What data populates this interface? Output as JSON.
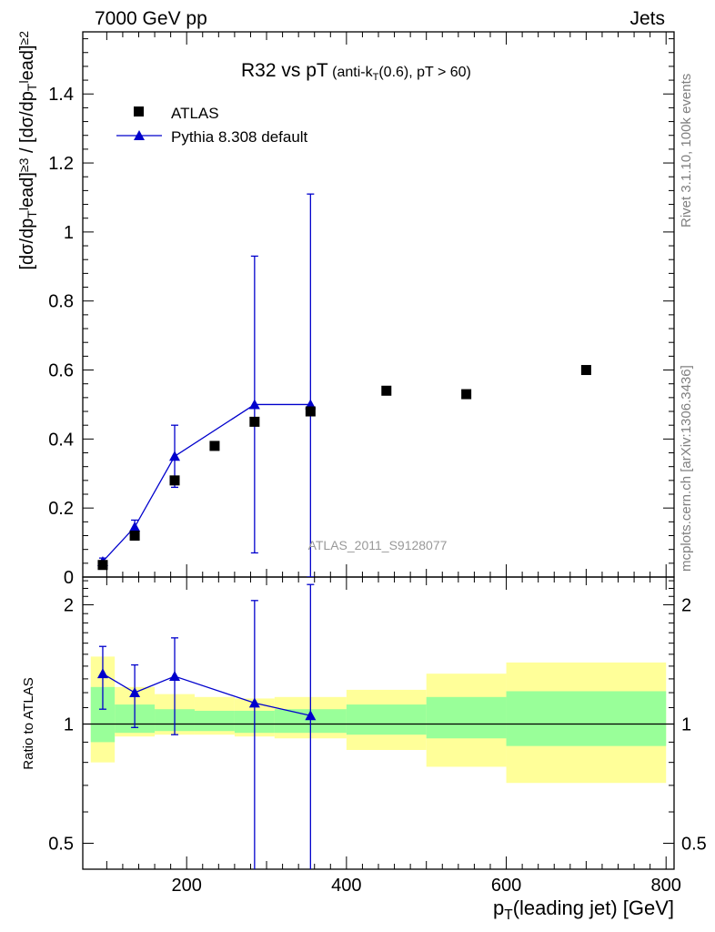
{
  "header": {
    "left": "7000 GeV pp",
    "right": "Jets"
  },
  "side_labels": {
    "top": "Rivet 3.1.10,  100k events",
    "bottom": "mcplots.cern.ch [arXiv:1306.3436]"
  },
  "colors": {
    "mc": "#0000cc",
    "data": "#000000",
    "band_inner": "#99ff99",
    "band_outer": "#ffff99",
    "side_text": "#808080",
    "watermark": "#999999"
  },
  "chart_data": [
    {
      "type": "scatter",
      "panel": "main",
      "title": "R32 vs pT",
      "title_detail": {
        "pre": "(anti-k",
        "sub": "T",
        "post": "(0.6), pT > 60)"
      },
      "ylabel": "[dσ/dp_T^lead]^{≥3} / [dσ/dp_T^lead]^{≥2}",
      "ylabel_parts": [
        {
          "t": "[dσ/dp"
        },
        {
          "t": "T",
          "s": "sub"
        },
        {
          "t": "l",
          "s": "sup"
        },
        {
          "t": "ead]"
        },
        {
          "t": "≥3",
          "s": "sup"
        },
        {
          "t": " / [dσ/dp"
        },
        {
          "t": "T",
          "s": "sub"
        },
        {
          "t": "l",
          "s": "sup"
        },
        {
          "t": "ead]"
        },
        {
          "t": "≥2",
          "s": "sup"
        }
      ],
      "xlim": [
        70,
        810
      ],
      "ylim": [
        0,
        1.58
      ],
      "yticks": [
        0,
        0.2,
        0.4,
        0.6,
        0.8,
        1,
        1.2,
        1.4
      ],
      "ytick_labels": [
        "0",
        "0.2",
        "0.4",
        "0.6",
        "0.8",
        "1",
        "1.2",
        "1.4"
      ],
      "watermark": "ATLAS_2011_S9128077",
      "legend_position": "top-left",
      "series": [
        {
          "name": "ATLAS",
          "marker": "square",
          "x": [
            95,
            135,
            185,
            235,
            285,
            355,
            450,
            550,
            700
          ],
          "y": [
            0.035,
            0.12,
            0.28,
            0.38,
            0.45,
            0.48,
            0.54,
            0.53,
            0.6
          ]
        },
        {
          "name": "Pythia 8.308 default",
          "marker": "triangle",
          "x": [
            95,
            135,
            185,
            285,
            355
          ],
          "y": [
            0.045,
            0.145,
            0.35,
            0.5,
            0.5
          ],
          "err_low": [
            0.01,
            0.02,
            0.09,
            0.43,
            0.5
          ],
          "err_high": [
            0.01,
            0.02,
            0.09,
            0.43,
            0.61
          ],
          "bins": [
            [
              80,
              110
            ],
            [
              110,
              160
            ],
            [
              160,
              210
            ],
            [
              260,
              310
            ],
            [
              310,
              400
            ]
          ]
        }
      ]
    },
    {
      "type": "scatter",
      "panel": "ratio",
      "ylabel": "Ratio to ATLAS",
      "xlabel": "p_T(leading jet) [GeV]",
      "xlabel_parts": [
        {
          "t": "p"
        },
        {
          "t": "T",
          "s": "sub"
        },
        {
          "t": "(leading jet) [GeV]"
        }
      ],
      "xlim": [
        70,
        810
      ],
      "ylim": [
        0.43,
        2.35
      ],
      "log_y": true,
      "xticks": [
        200,
        400,
        600,
        800
      ],
      "xtick_labels": [
        "200",
        "400",
        "600",
        "800"
      ],
      "yticks": [
        0.5,
        1,
        2
      ],
      "ytick_labels": [
        "0.5",
        "1",
        "2"
      ],
      "reference_line": 1,
      "bands": {
        "edges": [
          80,
          110,
          160,
          210,
          260,
          310,
          400,
          500,
          600,
          800
        ],
        "inner_low": [
          0.9,
          0.95,
          0.96,
          0.96,
          0.95,
          0.95,
          0.94,
          0.92,
          0.88
        ],
        "inner_high": [
          1.24,
          1.12,
          1.09,
          1.08,
          1.08,
          1.09,
          1.12,
          1.17,
          1.21
        ],
        "outer_low": [
          0.8,
          0.93,
          0.94,
          0.94,
          0.93,
          0.92,
          0.86,
          0.78,
          0.71
        ],
        "outer_high": [
          1.48,
          1.24,
          1.19,
          1.17,
          1.16,
          1.17,
          1.22,
          1.34,
          1.43
        ]
      },
      "series": [
        {
          "name": "Pythia 8.308 default",
          "x": [
            95,
            135,
            185,
            285,
            355
          ],
          "y": [
            1.34,
            1.2,
            1.32,
            1.13,
            1.05
          ],
          "err_low": [
            0.25,
            0.22,
            0.38,
            0.8,
            0.7
          ],
          "err_high": [
            0.23,
            0.21,
            0.33,
            0.92,
            1.2
          ]
        }
      ]
    }
  ]
}
